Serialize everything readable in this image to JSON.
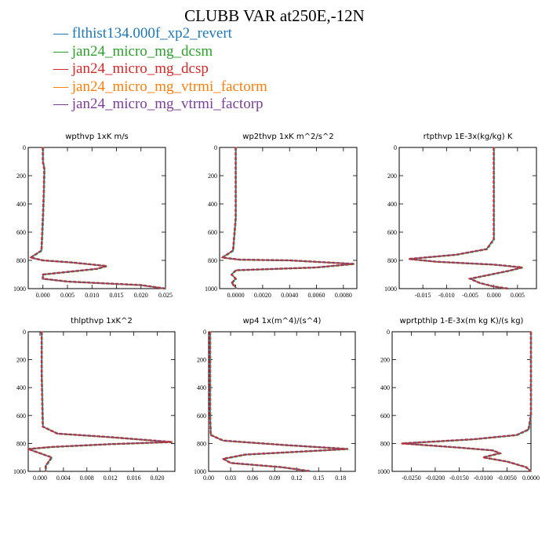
{
  "title": "CLUBB VAR at250E,-12N",
  "legend": [
    {
      "label": "flthist134.000f_xp2_revert",
      "color": "#1f77b4"
    },
    {
      "label": "jan24_micro_mg_dcsm",
      "color": "#2ca02c"
    },
    {
      "label": "jan24_micro_mg_dcsp",
      "color": "#d62728"
    },
    {
      "label": "jan24_micro_mg_vtrmi_factorm",
      "color": "#ff7f0e"
    },
    {
      "label": "jan24_micro_mg_vtrmi_factorp",
      "color": "#7b3f98"
    }
  ],
  "legend_marker": "—",
  "chart_data": [
    {
      "type": "line",
      "title": "wpthvp  1xK m/s",
      "ylim": [
        1000,
        0
      ],
      "yticks": [
        0,
        200,
        400,
        600,
        800,
        1000
      ],
      "xlim": [
        -0.003,
        0.025
      ],
      "xticks": [
        0.0,
        0.005,
        0.01,
        0.015,
        0.02,
        0.025
      ],
      "xticklabels": [
        "0.000",
        "0.005",
        "0.010",
        "0.015",
        "0.020",
        "0.025"
      ],
      "series": [
        {
          "x": [
            0.0,
            0.0,
            0.0003,
            0.0002,
            0.0,
            -0.0003,
            -0.0025,
            0.0,
            0.006,
            0.013,
            0.011,
            0.0,
            0.0,
            0.005,
            0.02,
            0.025
          ],
          "y": [
            0,
            100,
            150,
            300,
            500,
            730,
            780,
            800,
            815,
            840,
            860,
            900,
            930,
            950,
            975,
            1000
          ]
        }
      ]
    },
    {
      "type": "line",
      "title": "wp2thvp  1xK m^2/s^2",
      "ylim": [
        1000,
        0
      ],
      "yticks": [
        0,
        200,
        400,
        600,
        800,
        1000
      ],
      "xlim": [
        -0.0012,
        0.009
      ],
      "xticks": [
        0.0,
        0.002,
        0.004,
        0.006,
        0.008
      ],
      "xticklabels": [
        "0.0000",
        "0.0020",
        "0.0040",
        "0.0060",
        "0.0080"
      ],
      "series": [
        {
          "x": [
            0.0,
            0.0,
            0.0,
            -0.0002,
            -0.001,
            0.0003,
            0.004,
            0.0088,
            0.006,
            0.0,
            -0.0003,
            0.0,
            -0.0003,
            0.0,
            0.0
          ],
          "y": [
            0,
            100,
            500,
            730,
            780,
            795,
            800,
            825,
            850,
            870,
            900,
            930,
            960,
            990,
            1000
          ]
        }
      ]
    },
    {
      "type": "line",
      "title": "rtpthvp  1E-3x(kg/kg) K",
      "ylim": [
        1000,
        0
      ],
      "yticks": [
        0,
        200,
        400,
        600,
        800,
        1000
      ],
      "xlim": [
        -0.02,
        0.009
      ],
      "xticks": [
        -0.015,
        -0.01,
        -0.005,
        0.0,
        0.005
      ],
      "xticklabels": [
        "-0.015",
        "-0.010",
        "-0.005",
        "0.000",
        "0.005"
      ],
      "series": [
        {
          "x": [
            0.0,
            0.0,
            0.0,
            -0.0015,
            -0.008,
            -0.018,
            -0.012,
            0.0,
            0.006,
            0.003,
            -0.005,
            -0.003,
            0.0,
            0.003
          ],
          "y": [
            0,
            200,
            650,
            720,
            760,
            790,
            810,
            830,
            850,
            875,
            930,
            960,
            985,
            1000
          ]
        }
      ]
    },
    {
      "type": "line",
      "title": "thlpthvp  1xK^2",
      "ylim": [
        1000,
        0
      ],
      "yticks": [
        0,
        200,
        400,
        600,
        800,
        1000
      ],
      "xlim": [
        -0.002,
        0.023
      ],
      "xticks": [
        0.0,
        0.004,
        0.008,
        0.012,
        0.016,
        0.02
      ],
      "xticklabels": [
        "0.000",
        "0.004",
        "0.008",
        "0.012",
        "0.016",
        "0.020"
      ],
      "series": [
        {
          "x": [
            0.0003,
            0.0003,
            0.0003,
            0.0005,
            0.003,
            0.012,
            0.0225,
            0.012,
            0.002,
            -0.002,
            0.0,
            0.002,
            0.001,
            0.001
          ],
          "y": [
            0,
            50,
            300,
            680,
            730,
            755,
            790,
            805,
            825,
            840,
            870,
            900,
            960,
            1000
          ]
        }
      ]
    },
    {
      "type": "line",
      "title": "wp4  1x(m^4)/(s^4)",
      "ylim": [
        1000,
        0
      ],
      "yticks": [
        0,
        200,
        400,
        600,
        800,
        1000
      ],
      "xlim": [
        0.0,
        0.2
      ],
      "xticks": [
        0.0,
        0.03,
        0.06,
        0.09,
        0.12,
        0.15,
        0.18
      ],
      "xticklabels": [
        "0.00",
        "0.03",
        "0.06",
        "0.09",
        "0.12",
        "0.15",
        "0.18"
      ],
      "series": [
        {
          "x": [
            0.002,
            0.002,
            0.002,
            0.003,
            0.02,
            0.1,
            0.19,
            0.12,
            0.05,
            0.02,
            0.03,
            0.1,
            0.14
          ],
          "y": [
            0,
            200,
            600,
            740,
            780,
            810,
            840,
            860,
            880,
            910,
            940,
            970,
            1000
          ]
        }
      ]
    },
    {
      "type": "line",
      "title": "wprtpthlp  1-E-3x(m kg K)/(s kg)",
      "ylim": [
        1000,
        0
      ],
      "yticks": [
        0,
        200,
        400,
        600,
        800,
        1000
      ],
      "xlim": [
        -0.029,
        0.0
      ],
      "xticks": [
        -0.025,
        -0.02,
        -0.015,
        -0.01,
        -0.005,
        0.0
      ],
      "xticklabels": [
        "-0.0250",
        "-0.0200",
        "-0.0150",
        "-0.0100",
        "-0.0050",
        "0.0000"
      ],
      "series": [
        {
          "x": [
            0.0,
            0.0,
            -0.0005,
            -0.003,
            -0.012,
            -0.027,
            -0.015,
            -0.008,
            -0.0065,
            -0.01,
            -0.005,
            -0.001,
            0.0
          ],
          "y": [
            0,
            600,
            700,
            740,
            770,
            800,
            830,
            850,
            870,
            900,
            930,
            970,
            1000
          ]
        }
      ]
    }
  ]
}
